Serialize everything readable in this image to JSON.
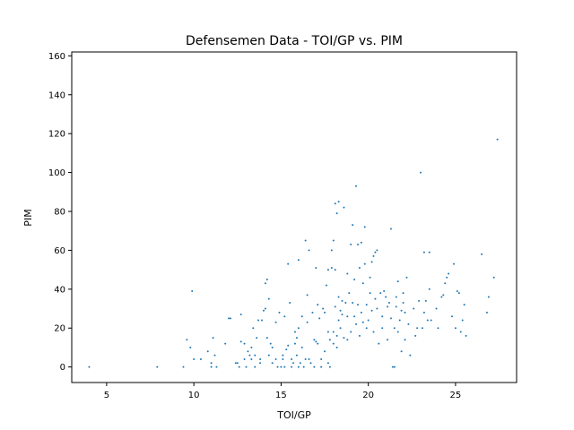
{
  "chart_data": {
    "type": "scatter",
    "title": "Defensemen Data - TOI/GP vs. PIM",
    "xlabel": "TOI/GP",
    "ylabel": "PIM",
    "xlim": [
      3,
      28.5
    ],
    "ylim": [
      -8,
      162
    ],
    "xticks": [
      5,
      10,
      15,
      20,
      25
    ],
    "yticks": [
      0,
      20,
      40,
      60,
      80,
      100,
      120,
      140,
      160
    ],
    "grid": false,
    "legend": "none",
    "marker_color": "#1f77b4",
    "points": [
      [
        4.0,
        0
      ],
      [
        7.9,
        0
      ],
      [
        9.4,
        0
      ],
      [
        9.6,
        14
      ],
      [
        9.8,
        10
      ],
      [
        10.0,
        4
      ],
      [
        9.9,
        39
      ],
      [
        10.4,
        4
      ],
      [
        10.8,
        8
      ],
      [
        11.0,
        2
      ],
      [
        11.0,
        0
      ],
      [
        11.1,
        15
      ],
      [
        11.2,
        6
      ],
      [
        11.3,
        0
      ],
      [
        11.8,
        12
      ],
      [
        12.0,
        25
      ],
      [
        12.1,
        25
      ],
      [
        12.4,
        2
      ],
      [
        12.5,
        2
      ],
      [
        12.6,
        0
      ],
      [
        12.7,
        27
      ],
      [
        12.7,
        13
      ],
      [
        12.9,
        4
      ],
      [
        12.9,
        12
      ],
      [
        13.0,
        0
      ],
      [
        13.1,
        8
      ],
      [
        13.2,
        6
      ],
      [
        13.3,
        4
      ],
      [
        13.3,
        10
      ],
      [
        13.4,
        20
      ],
      [
        13.5,
        6
      ],
      [
        13.5,
        0
      ],
      [
        13.6,
        15
      ],
      [
        13.7,
        24
      ],
      [
        13.8,
        2
      ],
      [
        13.8,
        4
      ],
      [
        13.9,
        24
      ],
      [
        14.0,
        29
      ],
      [
        14.1,
        30
      ],
      [
        14.1,
        43
      ],
      [
        14.2,
        45
      ],
      [
        14.2,
        15
      ],
      [
        14.3,
        35
      ],
      [
        14.3,
        6
      ],
      [
        14.4,
        12
      ],
      [
        14.5,
        10
      ],
      [
        14.5,
        2
      ],
      [
        14.7,
        23
      ],
      [
        14.7,
        4
      ],
      [
        14.8,
        0
      ],
      [
        14.9,
        28
      ],
      [
        15.0,
        0
      ],
      [
        15.1,
        4
      ],
      [
        15.1,
        6
      ],
      [
        15.2,
        26
      ],
      [
        15.2,
        0
      ],
      [
        15.3,
        9
      ],
      [
        15.4,
        53
      ],
      [
        15.4,
        11
      ],
      [
        15.5,
        33
      ],
      [
        15.6,
        4
      ],
      [
        15.6,
        0
      ],
      [
        15.7,
        2
      ],
      [
        15.8,
        12
      ],
      [
        15.8,
        18
      ],
      [
        15.9,
        6
      ],
      [
        15.9,
        15
      ],
      [
        16.0,
        20
      ],
      [
        16.0,
        0
      ],
      [
        16.0,
        55
      ],
      [
        16.1,
        2
      ],
      [
        16.2,
        10
      ],
      [
        16.2,
        26
      ],
      [
        16.3,
        0
      ],
      [
        16.4,
        65
      ],
      [
        16.4,
        4
      ],
      [
        16.5,
        37
      ],
      [
        16.5,
        23
      ],
      [
        16.6,
        60
      ],
      [
        16.6,
        4
      ],
      [
        16.7,
        2
      ],
      [
        16.8,
        28
      ],
      [
        16.9,
        0
      ],
      [
        16.9,
        14
      ],
      [
        17.0,
        13
      ],
      [
        17.0,
        51
      ],
      [
        17.1,
        32
      ],
      [
        17.1,
        12
      ],
      [
        17.2,
        25
      ],
      [
        17.3,
        4
      ],
      [
        17.3,
        0
      ],
      [
        17.4,
        30
      ],
      [
        17.5,
        8
      ],
      [
        17.5,
        28
      ],
      [
        17.6,
        42
      ],
      [
        17.7,
        50
      ],
      [
        17.7,
        18
      ],
      [
        17.7,
        2
      ],
      [
        17.8,
        0
      ],
      [
        17.8,
        14
      ],
      [
        17.9,
        51
      ],
      [
        17.9,
        60
      ],
      [
        18.0,
        65
      ],
      [
        18.0,
        18
      ],
      [
        18.0,
        12
      ],
      [
        18.1,
        84
      ],
      [
        18.1,
        50
      ],
      [
        18.1,
        31
      ],
      [
        18.2,
        79
      ],
      [
        18.2,
        16
      ],
      [
        18.2,
        10
      ],
      [
        18.3,
        85
      ],
      [
        18.3,
        36
      ],
      [
        18.3,
        24
      ],
      [
        18.4,
        29
      ],
      [
        18.4,
        20
      ],
      [
        18.5,
        34
      ],
      [
        18.5,
        27
      ],
      [
        18.6,
        82
      ],
      [
        18.6,
        15
      ],
      [
        18.7,
        33
      ],
      [
        18.8,
        48
      ],
      [
        18.8,
        26
      ],
      [
        18.8,
        14
      ],
      [
        18.9,
        38
      ],
      [
        19.0,
        63
      ],
      [
        19.0,
        18
      ],
      [
        19.1,
        73
      ],
      [
        19.1,
        33
      ],
      [
        19.2,
        45
      ],
      [
        19.2,
        26
      ],
      [
        19.3,
        93
      ],
      [
        19.3,
        22
      ],
      [
        19.4,
        63
      ],
      [
        19.4,
        32
      ],
      [
        19.5,
        51
      ],
      [
        19.5,
        16
      ],
      [
        19.6,
        64
      ],
      [
        19.6,
        28
      ],
      [
        19.7,
        43
      ],
      [
        19.7,
        23
      ],
      [
        19.8,
        72
      ],
      [
        19.8,
        53
      ],
      [
        19.9,
        32
      ],
      [
        19.9,
        20
      ],
      [
        20.0,
        24
      ],
      [
        20.1,
        46
      ],
      [
        20.1,
        38
      ],
      [
        20.2,
        54
      ],
      [
        20.2,
        29
      ],
      [
        20.3,
        57
      ],
      [
        20.3,
        18
      ],
      [
        20.4,
        59
      ],
      [
        20.4,
        35
      ],
      [
        20.5,
        60
      ],
      [
        20.5,
        30
      ],
      [
        20.6,
        12
      ],
      [
        20.7,
        38
      ],
      [
        20.8,
        26
      ],
      [
        20.8,
        20
      ],
      [
        20.9,
        39
      ],
      [
        21.0,
        36
      ],
      [
        21.1,
        31
      ],
      [
        21.1,
        14
      ],
      [
        21.2,
        33
      ],
      [
        21.3,
        71
      ],
      [
        21.3,
        25
      ],
      [
        21.4,
        0
      ],
      [
        21.5,
        20
      ],
      [
        21.5,
        0
      ],
      [
        21.6,
        36
      ],
      [
        21.6,
        31
      ],
      [
        21.7,
        44
      ],
      [
        21.7,
        18
      ],
      [
        21.8,
        24
      ],
      [
        21.9,
        29
      ],
      [
        21.9,
        8
      ],
      [
        22.0,
        38
      ],
      [
        22.0,
        33
      ],
      [
        22.1,
        28
      ],
      [
        22.1,
        14
      ],
      [
        22.2,
        46
      ],
      [
        22.3,
        22
      ],
      [
        22.4,
        6
      ],
      [
        22.6,
        30
      ],
      [
        22.7,
        16
      ],
      [
        22.8,
        20
      ],
      [
        22.9,
        34
      ],
      [
        23.0,
        100
      ],
      [
        23.1,
        20
      ],
      [
        23.2,
        59
      ],
      [
        23.2,
        28
      ],
      [
        23.3,
        34
      ],
      [
        23.4,
        24
      ],
      [
        23.5,
        59
      ],
      [
        23.5,
        40
      ],
      [
        23.6,
        24
      ],
      [
        23.9,
        30
      ],
      [
        24.0,
        20
      ],
      [
        24.2,
        36
      ],
      [
        24.3,
        37
      ],
      [
        24.4,
        43
      ],
      [
        24.5,
        46
      ],
      [
        24.6,
        48
      ],
      [
        24.8,
        26
      ],
      [
        24.9,
        53
      ],
      [
        25.0,
        20
      ],
      [
        25.1,
        39
      ],
      [
        25.2,
        38
      ],
      [
        25.3,
        18
      ],
      [
        25.4,
        24
      ],
      [
        25.5,
        32
      ],
      [
        25.6,
        16
      ],
      [
        26.5,
        58
      ],
      [
        26.8,
        28
      ],
      [
        26.9,
        36
      ],
      [
        27.2,
        46
      ],
      [
        27.4,
        117
      ]
    ]
  }
}
